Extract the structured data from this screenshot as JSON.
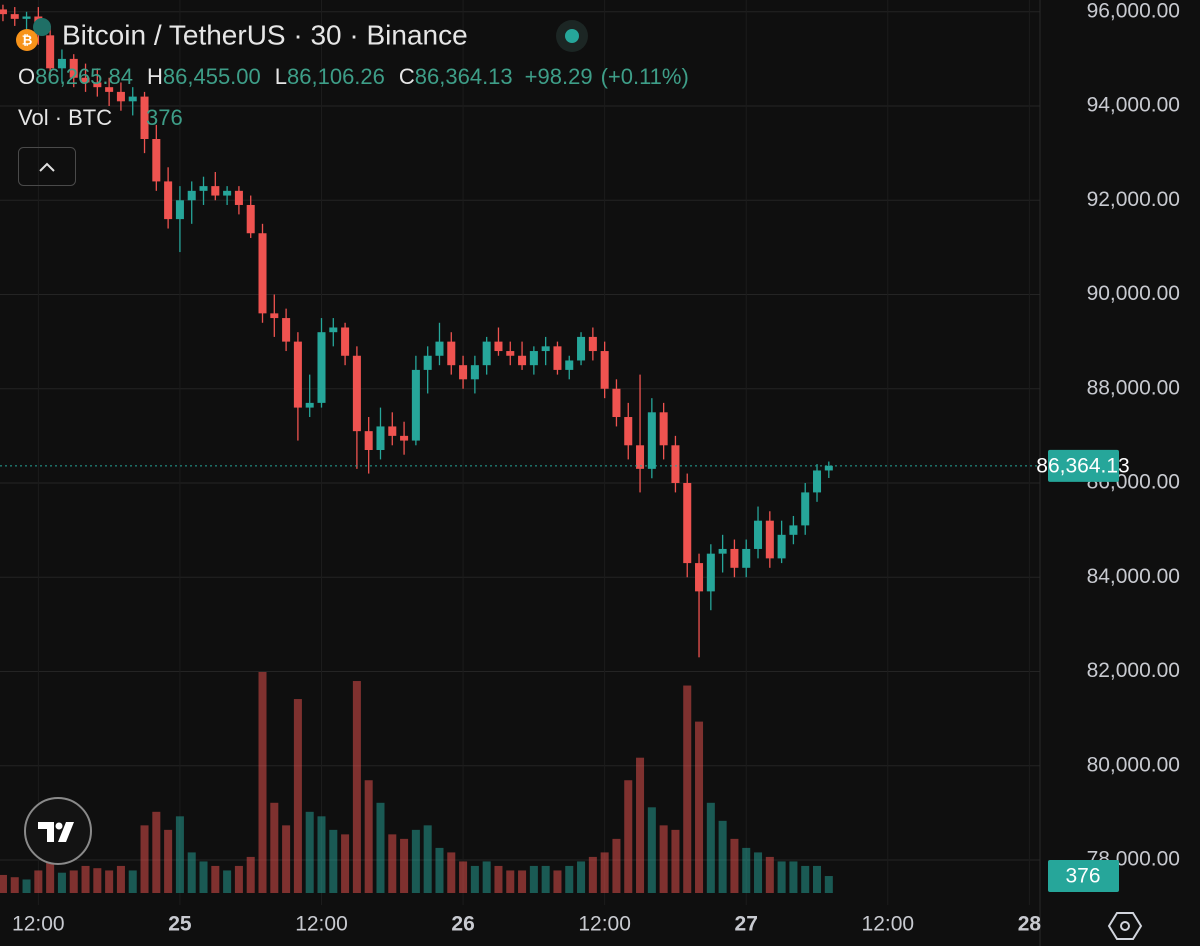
{
  "chart_data": {
    "type": "candlestick",
    "title": "Bitcoin / TetherUS · 30 · Binance",
    "legend": {
      "items": [
        {
          "key": "O",
          "value": 86265.84,
          "label": "86,265.84"
        },
        {
          "key": "H",
          "value": 86455.0,
          "label": "86,455.00"
        },
        {
          "key": "L",
          "value": 86106.26,
          "label": "86,106.26"
        },
        {
          "key": "C",
          "value": 86364.13,
          "label": "86,364.13"
        }
      ],
      "change": {
        "value": 98.29,
        "label": "+98.29"
      },
      "change_pct": {
        "value": 0.11,
        "label": "(+0.11%)"
      }
    },
    "volume_title": "Vol · BTC",
    "volume_label": {
      "value": 376,
      "label": "376"
    },
    "last_price": {
      "value": 86364.13,
      "label": "86,364.13"
    },
    "x": [
      -15,
      -14,
      -13,
      -12,
      -11,
      -10,
      -9,
      -8,
      -7,
      -6,
      -5,
      -4,
      -3,
      -2,
      -1,
      0,
      1,
      2,
      3,
      4,
      5,
      6,
      7,
      8,
      9,
      10,
      11,
      12,
      13,
      14,
      15,
      16,
      17,
      18,
      19,
      20,
      21,
      22,
      23,
      24,
      25,
      26,
      27,
      28,
      29,
      30,
      31,
      32,
      33,
      34,
      35,
      36,
      37,
      38,
      39,
      40,
      41,
      42,
      43,
      44,
      45,
      46,
      47,
      48,
      49,
      50,
      51,
      52,
      53,
      54,
      55
    ],
    "open": [
      96050,
      95950,
      95850,
      95900,
      95500,
      94800,
      95000,
      94600,
      94500,
      94400,
      94300,
      94100,
      94200,
      93300,
      92400,
      91600,
      92000,
      92200,
      92300,
      92100,
      92200,
      91900,
      91300,
      89600,
      89500,
      89000,
      87600,
      87700,
      89200,
      89300,
      88700,
      87100,
      86700,
      87200,
      87000,
      86900,
      88400,
      88700,
      89000,
      88500,
      88200,
      88500,
      89000,
      88800,
      88700,
      88500,
      88800,
      88900,
      88400,
      88600,
      89100,
      88800,
      88000,
      87400,
      86800,
      86300,
      87500,
      86800,
      86000,
      84300,
      83700,
      84500,
      84600,
      84200,
      84600,
      85200,
      84400,
      84900,
      85100,
      85800,
      86265.84
    ],
    "high": [
      96150,
      96100,
      96000,
      96100,
      95700,
      95200,
      95100,
      94900,
      94800,
      94600,
      94500,
      94400,
      94300,
      93600,
      92700,
      92300,
      92400,
      92500,
      92600,
      92300,
      92300,
      92100,
      91500,
      90000,
      89700,
      89200,
      88300,
      89500,
      89500,
      89400,
      88900,
      87400,
      87600,
      87500,
      87300,
      88700,
      88900,
      89400,
      89200,
      88700,
      88700,
      89100,
      89300,
      89000,
      89000,
      88900,
      89100,
      89000,
      88700,
      89200,
      89300,
      89000,
      88200,
      87700,
      88300,
      87800,
      87700,
      87000,
      86200,
      84500,
      84700,
      84900,
      84800,
      84800,
      85500,
      85400,
      85200,
      85300,
      86000,
      86400,
      86455.0
    ],
    "low": [
      95800,
      95700,
      95600,
      95300,
      94600,
      94500,
      94400,
      94300,
      94200,
      94000,
      93900,
      93800,
      93000,
      92200,
      91400,
      90900,
      91500,
      91900,
      92000,
      91900,
      91700,
      91200,
      89400,
      89100,
      88800,
      86900,
      87400,
      87600,
      88900,
      88500,
      86300,
      86200,
      86500,
      86800,
      86600,
      86800,
      87900,
      88500,
      88300,
      88000,
      87900,
      88300,
      88700,
      88500,
      88400,
      88300,
      88500,
      88300,
      88200,
      88500,
      88600,
      87800,
      87200,
      86500,
      85800,
      86100,
      86500,
      85800,
      84000,
      82300,
      83300,
      84100,
      84000,
      84000,
      84400,
      84200,
      84300,
      84700,
      84900,
      85600,
      86106.26
    ],
    "close": [
      95950,
      95850,
      95900,
      95500,
      94800,
      95000,
      94600,
      94500,
      94400,
      94300,
      94100,
      94200,
      93300,
      92400,
      91600,
      92000,
      92200,
      92300,
      92100,
      92200,
      91900,
      91300,
      89600,
      89500,
      89000,
      87600,
      87700,
      89200,
      89300,
      88700,
      87100,
      86700,
      87200,
      87000,
      86900,
      88400,
      88700,
      89000,
      88500,
      88200,
      88500,
      89000,
      88800,
      88700,
      88500,
      88800,
      88900,
      88400,
      88600,
      89100,
      88800,
      88000,
      87400,
      86800,
      86300,
      87500,
      86800,
      86000,
      84300,
      83700,
      84500,
      84600,
      84200,
      84600,
      85200,
      84400,
      84900,
      85100,
      85800,
      86265.84,
      86364.13
    ],
    "volume": [
      400,
      350,
      300,
      500,
      700,
      450,
      500,
      600,
      550,
      500,
      600,
      500,
      1500,
      1800,
      1400,
      1700,
      900,
      700,
      600,
      500,
      600,
      800,
      4900,
      2000,
      1500,
      4300,
      1800,
      1700,
      1400,
      1300,
      4700,
      2500,
      2000,
      1300,
      1200,
      1400,
      1500,
      1000,
      900,
      700,
      600,
      700,
      600,
      500,
      500,
      600,
      600,
      500,
      600,
      700,
      800,
      900,
      1200,
      2500,
      3000,
      1900,
      1500,
      1400,
      4600,
      3800,
      2000,
      1600,
      1200,
      1000,
      900,
      800,
      700,
      700,
      600,
      600,
      376
    ],
    "xlim": [
      -15.25,
      72.9
    ],
    "ylim": [
      77150,
      96250
    ],
    "volume_lim": [
      0,
      4900
    ],
    "xticks": [
      {
        "value": -12,
        "label": "12:00"
      },
      {
        "value": 0,
        "label": "25"
      },
      {
        "value": 12,
        "label": "12:00"
      },
      {
        "value": 24,
        "label": "26"
      },
      {
        "value": 36,
        "label": "12:00"
      },
      {
        "value": 48,
        "label": "27"
      },
      {
        "value": 60,
        "label": "12:00"
      },
      {
        "value": 72,
        "label": "28"
      }
    ],
    "yticks": [
      {
        "value": 78000,
        "label": "78,000.00"
      },
      {
        "value": 80000,
        "label": "80,000.00"
      },
      {
        "value": 82000,
        "label": "82,000.00"
      },
      {
        "value": 84000,
        "label": "84,000.00"
      },
      {
        "value": 86000,
        "label": "86,000.00"
      },
      {
        "value": 88000,
        "label": "88,000.00"
      },
      {
        "value": 90000,
        "label": "90,000.00"
      },
      {
        "value": 92000,
        "label": "92,000.00"
      },
      {
        "value": 94000,
        "label": "94,000.00"
      },
      {
        "value": 96000,
        "label": "96,000.00"
      }
    ],
    "up_color": "#26a69a",
    "down_color": "#ef5350",
    "grid": true
  }
}
